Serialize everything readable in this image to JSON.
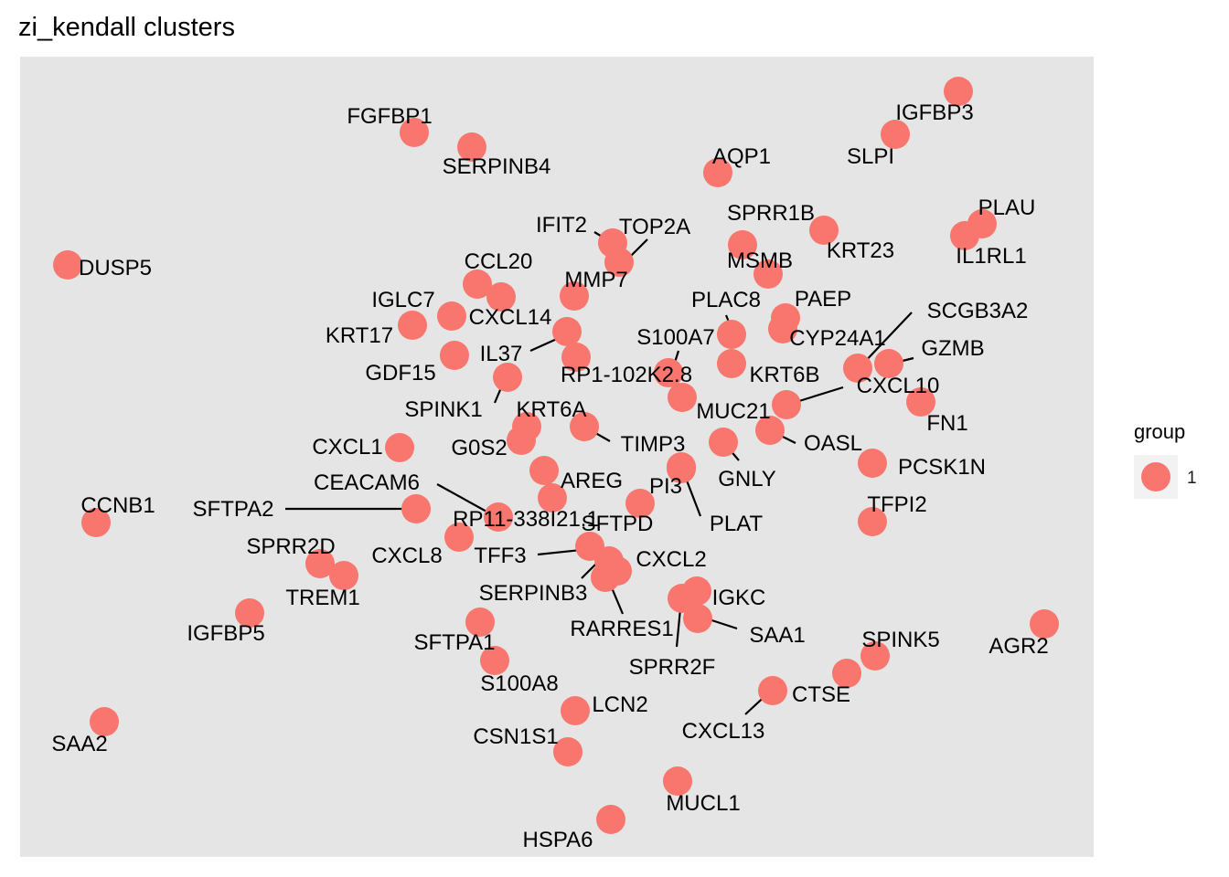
{
  "chart_data": {
    "type": "scatter",
    "title": "zi_kendall clusters",
    "xlabel": "",
    "ylabel": "",
    "grid": false,
    "legend_position": "right",
    "legend": {
      "title": "group",
      "entries": [
        {
          "label": "1",
          "color": "#F8766D"
        }
      ]
    },
    "colors": {
      "point": "#F8766D",
      "panel": "#E5E5E5",
      "leader": "#000000"
    },
    "points": [
      {
        "name": "IGFBP3"
      },
      {
        "name": "SLPI"
      },
      {
        "name": "FGFBP1"
      },
      {
        "name": "SERPINB4"
      },
      {
        "name": "AQP1"
      },
      {
        "name": "SPRR1B"
      },
      {
        "name": "KRT23"
      },
      {
        "name": "PLAU"
      },
      {
        "name": "IL1RL1"
      },
      {
        "name": "IFIT2"
      },
      {
        "name": "TOP2A"
      },
      {
        "name": "DUSP5"
      },
      {
        "name": "MSMB"
      },
      {
        "name": "CCL20"
      },
      {
        "name": "MMP7"
      },
      {
        "name": "CXCL14"
      },
      {
        "name": "IGLC7"
      },
      {
        "name": "PLAC8"
      },
      {
        "name": "PAEP"
      },
      {
        "name": "KRT17"
      },
      {
        "name": "SCGB3A2"
      },
      {
        "name": "IL37"
      },
      {
        "name": "S100A7"
      },
      {
        "name": "CYP24A1"
      },
      {
        "name": "GDF15"
      },
      {
        "name": "GZMB"
      },
      {
        "name": "RP1-102K2.8"
      },
      {
        "name": "KRT6B"
      },
      {
        "name": "SPINK1"
      },
      {
        "name": "CXCL10"
      },
      {
        "name": "KRT6A"
      },
      {
        "name": "MUC21"
      },
      {
        "name": "FN1"
      },
      {
        "name": "TIMP3"
      },
      {
        "name": "OASL"
      },
      {
        "name": "CXCL1"
      },
      {
        "name": "G0S2"
      },
      {
        "name": "PCSK1N"
      },
      {
        "name": "GNLY"
      },
      {
        "name": "CEACAM6"
      },
      {
        "name": "AREG"
      },
      {
        "name": "PI3"
      },
      {
        "name": "SFTPA2"
      },
      {
        "name": "TFPI2"
      },
      {
        "name": "CCNB1"
      },
      {
        "name": "RP11-338I21.1"
      },
      {
        "name": "SFTPD"
      },
      {
        "name": "PLAT"
      },
      {
        "name": "SPRR2D"
      },
      {
        "name": "CXCL8"
      },
      {
        "name": "TFF3"
      },
      {
        "name": "CXCL2"
      },
      {
        "name": "TREM1"
      },
      {
        "name": "SERPINB3"
      },
      {
        "name": "IGKC"
      },
      {
        "name": "IGFBP5"
      },
      {
        "name": "RARRES1"
      },
      {
        "name": "SAA1"
      },
      {
        "name": "SFTPA1"
      },
      {
        "name": "AGR2"
      },
      {
        "name": "SPINK5"
      },
      {
        "name": "SPRR2F"
      },
      {
        "name": "S100A8"
      },
      {
        "name": "CTSE"
      },
      {
        "name": "LCN2"
      },
      {
        "name": "CXCL13"
      },
      {
        "name": "SAA2"
      },
      {
        "name": "CSN1S1"
      },
      {
        "name": "MUCL1"
      },
      {
        "name": "HSPA6"
      }
    ]
  }
}
